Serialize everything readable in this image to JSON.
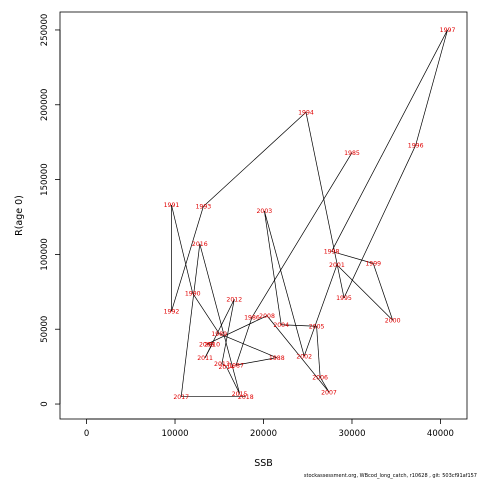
{
  "chart_data": {
    "type": "scatter",
    "title": "",
    "xlabel": "SSB",
    "ylabel": "R(age 0)",
    "xlim": [
      -3000,
      43000
    ],
    "ylim": [
      -10000,
      262000
    ],
    "x_ticks": [
      0,
      10000,
      20000,
      30000,
      40000
    ],
    "y_ticks": [
      0,
      50000,
      100000,
      150000,
      200000,
      250000
    ],
    "grid": false,
    "legend": "none",
    "connected": true,
    "label_color": "#e00000",
    "line_color": "#000000",
    "points": [
      {
        "label": "1985",
        "x": 30000,
        "y": 168000
      },
      {
        "label": "1986",
        "x": 18700,
        "y": 58000
      },
      {
        "label": "1987",
        "x": 16900,
        "y": 26000
      },
      {
        "label": "1988",
        "x": 21500,
        "y": 31000
      },
      {
        "label": "1989",
        "x": 15000,
        "y": 47000
      },
      {
        "label": "1990",
        "x": 12000,
        "y": 74000
      },
      {
        "label": "1991",
        "x": 9600,
        "y": 133000
      },
      {
        "label": "1992",
        "x": 9600,
        "y": 62000
      },
      {
        "label": "1993",
        "x": 13200,
        "y": 132000
      },
      {
        "label": "1994",
        "x": 24800,
        "y": 195000
      },
      {
        "label": "1995",
        "x": 29100,
        "y": 71000
      },
      {
        "label": "1996",
        "x": 37200,
        "y": 173000
      },
      {
        "label": "1997",
        "x": 40800,
        "y": 250000
      },
      {
        "label": "1998",
        "x": 27700,
        "y": 102000
      },
      {
        "label": "1999",
        "x": 32400,
        "y": 94000
      },
      {
        "label": "2000",
        "x": 34600,
        "y": 56000
      },
      {
        "label": "2001",
        "x": 28300,
        "y": 93000
      },
      {
        "label": "2002",
        "x": 24600,
        "y": 32000
      },
      {
        "label": "2003",
        "x": 20100,
        "y": 129000
      },
      {
        "label": "2004",
        "x": 22000,
        "y": 53000
      },
      {
        "label": "2005",
        "x": 26000,
        "y": 52000
      },
      {
        "label": "2006",
        "x": 26400,
        "y": 18000
      },
      {
        "label": "2007",
        "x": 27400,
        "y": 8000
      },
      {
        "label": "2008",
        "x": 20400,
        "y": 59000
      },
      {
        "label": "2009",
        "x": 13600,
        "y": 40000
      },
      {
        "label": "2010",
        "x": 14200,
        "y": 40000
      },
      {
        "label": "2011",
        "x": 13400,
        "y": 31000
      },
      {
        "label": "2012",
        "x": 16700,
        "y": 70000
      },
      {
        "label": "2013",
        "x": 15300,
        "y": 27000
      },
      {
        "label": "2014",
        "x": 15800,
        "y": 25000
      },
      {
        "label": "2015",
        "x": 17300,
        "y": 7000
      },
      {
        "label": "2016",
        "x": 12800,
        "y": 107000
      },
      {
        "label": "2017",
        "x": 10700,
        "y": 5000
      },
      {
        "label": "2018",
        "x": 18000,
        "y": 5000
      }
    ]
  },
  "caption": "stockassessment.org, WBcod_long_catch, r10628 , git: 503cf91af157"
}
